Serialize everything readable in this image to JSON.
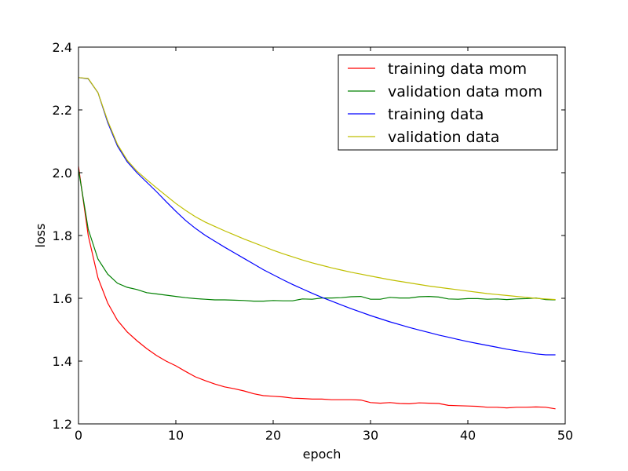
{
  "chart_data": {
    "type": "line",
    "title": "",
    "xlabel": "epoch",
    "ylabel": "loss",
    "xlim": [
      0,
      50
    ],
    "ylim": [
      1.2,
      2.4
    ],
    "grid": false,
    "legend_position": "top-right",
    "x_ticks": [
      "0",
      "10",
      "20",
      "30",
      "40",
      "50"
    ],
    "y_ticks": [
      "1.2",
      "1.4",
      "1.6",
      "1.8",
      "2.0",
      "2.2",
      "2.4"
    ],
    "x": [
      0,
      1,
      2,
      3,
      4,
      5,
      6,
      7,
      8,
      9,
      10,
      11,
      12,
      13,
      14,
      15,
      16,
      17,
      18,
      19,
      20,
      21,
      22,
      23,
      24,
      25,
      26,
      27,
      28,
      29,
      30,
      31,
      32,
      33,
      34,
      35,
      36,
      37,
      38,
      39,
      40,
      41,
      42,
      43,
      44,
      45,
      46,
      47,
      48,
      49
    ],
    "series": [
      {
        "name": "training data mom",
        "color": "#ff0000",
        "values": [
          2.02,
          1.8,
          1.665,
          1.585,
          1.53,
          1.493,
          1.465,
          1.44,
          1.418,
          1.4,
          1.385,
          1.367,
          1.35,
          1.338,
          1.327,
          1.318,
          1.312,
          1.305,
          1.296,
          1.29,
          1.288,
          1.286,
          1.282,
          1.281,
          1.279,
          1.279,
          1.277,
          1.277,
          1.277,
          1.276,
          1.268,
          1.266,
          1.268,
          1.265,
          1.264,
          1.267,
          1.266,
          1.265,
          1.259,
          1.258,
          1.257,
          1.256,
          1.253,
          1.253,
          1.251,
          1.253,
          1.253,
          1.254,
          1.253,
          1.248
        ]
      },
      {
        "name": "validation data mom",
        "color": "#008000",
        "values": [
          2.01,
          1.82,
          1.725,
          1.677,
          1.648,
          1.635,
          1.628,
          1.618,
          1.614,
          1.61,
          1.606,
          1.602,
          1.599,
          1.597,
          1.595,
          1.595,
          1.594,
          1.593,
          1.591,
          1.591,
          1.593,
          1.592,
          1.592,
          1.598,
          1.597,
          1.601,
          1.601,
          1.602,
          1.605,
          1.606,
          1.597,
          1.597,
          1.603,
          1.601,
          1.601,
          1.605,
          1.606,
          1.604,
          1.598,
          1.597,
          1.599,
          1.599,
          1.597,
          1.598,
          1.596,
          1.598,
          1.599,
          1.601,
          1.596,
          1.595
        ]
      },
      {
        "name": "training data",
        "color": "#0000ff",
        "values": [
          2.303,
          2.299,
          2.255,
          2.16,
          2.085,
          2.035,
          2.0,
          1.97,
          1.94,
          1.908,
          1.877,
          1.848,
          1.823,
          1.801,
          1.782,
          1.763,
          1.745,
          1.727,
          1.709,
          1.691,
          1.675,
          1.659,
          1.644,
          1.63,
          1.616,
          1.603,
          1.591,
          1.579,
          1.567,
          1.556,
          1.545,
          1.535,
          1.525,
          1.516,
          1.507,
          1.499,
          1.491,
          1.483,
          1.476,
          1.469,
          1.462,
          1.456,
          1.45,
          1.444,
          1.438,
          1.433,
          1.428,
          1.423,
          1.42,
          1.42
        ]
      },
      {
        "name": "validation data",
        "color": "#bfbf00",
        "values": [
          2.303,
          2.3,
          2.255,
          2.165,
          2.09,
          2.04,
          2.005,
          1.978,
          1.952,
          1.927,
          1.902,
          1.88,
          1.86,
          1.843,
          1.829,
          1.815,
          1.802,
          1.789,
          1.777,
          1.765,
          1.753,
          1.742,
          1.732,
          1.722,
          1.713,
          1.705,
          1.697,
          1.69,
          1.683,
          1.677,
          1.671,
          1.665,
          1.659,
          1.654,
          1.649,
          1.644,
          1.639,
          1.635,
          1.631,
          1.627,
          1.623,
          1.619,
          1.615,
          1.612,
          1.609,
          1.606,
          1.603,
          1.6,
          1.598,
          1.596
        ]
      }
    ]
  }
}
